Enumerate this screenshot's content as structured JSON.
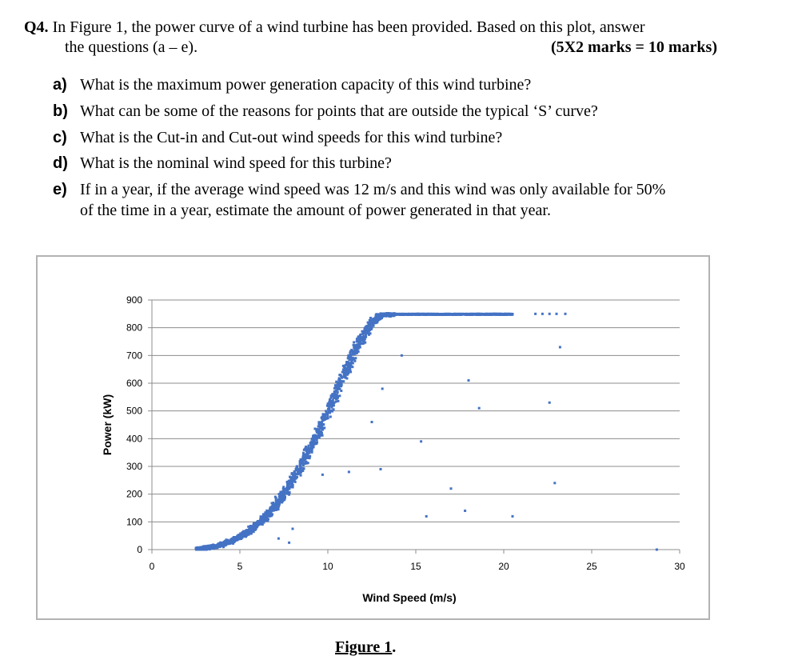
{
  "question": {
    "number": "Q4.",
    "intro_line1": "In Figure 1, the power curve of a wind turbine has been provided. Based on this plot, answer",
    "intro_line2": "the questions (a – e).",
    "marks": "(5X2 marks = 10 marks)"
  },
  "subquestions": [
    {
      "label": "a)",
      "text": "What is the maximum power generation capacity of this wind turbine?"
    },
    {
      "label": "b)",
      "text": "What can be some of the reasons for points that are outside the typical ‘S’ curve?"
    },
    {
      "label": "c)",
      "text": "What is the Cut-in and Cut-out wind speeds for this wind turbine?"
    },
    {
      "label": "d)",
      "text": "What is the nominal wind speed for this turbine?"
    },
    {
      "label": "e)",
      "text": "If in a year, if the average wind speed was 12 m/s and this wind was only available for 50%",
      "text2": "of the time in a year, estimate the amount of power generated in that year."
    }
  ],
  "figure_caption": "Figure 1",
  "figure_caption_suffix": ".",
  "chart_data": {
    "type": "scatter",
    "xlabel": "Wind Speed (m/s)",
    "ylabel": "Power (kW)",
    "xlim": [
      0,
      30
    ],
    "ylim": [
      0,
      900
    ],
    "x_ticks": [
      0,
      5,
      10,
      15,
      20,
      25,
      30
    ],
    "y_ticks": [
      0,
      100,
      200,
      300,
      400,
      500,
      600,
      700,
      800,
      900
    ],
    "grid": "horizontal",
    "legend": "none",
    "marker_color": "#4472c4",
    "power_curve": [
      [
        2.5,
        0
      ],
      [
        3.0,
        5
      ],
      [
        3.5,
        10
      ],
      [
        4.0,
        18
      ],
      [
        4.5,
        30
      ],
      [
        5.0,
        45
      ],
      [
        5.5,
        65
      ],
      [
        6.0,
        90
      ],
      [
        6.5,
        120
      ],
      [
        7.0,
        155
      ],
      [
        7.5,
        200
      ],
      [
        8.0,
        250
      ],
      [
        8.5,
        305
      ],
      [
        9.0,
        365
      ],
      [
        9.5,
        430
      ],
      [
        10.0,
        500
      ],
      [
        10.5,
        570
      ],
      [
        11.0,
        640
      ],
      [
        11.5,
        710
      ],
      [
        12.0,
        770
      ],
      [
        12.5,
        820
      ],
      [
        13.0,
        845
      ],
      [
        14.0,
        850
      ],
      [
        16.0,
        850
      ],
      [
        18.0,
        850
      ],
      [
        20.5,
        850
      ]
    ],
    "outliers": [
      {
        "x": 7.2,
        "y": 40
      },
      {
        "x": 8.0,
        "y": 75
      },
      {
        "x": 7.8,
        "y": 25
      },
      {
        "x": 9.7,
        "y": 270
      },
      {
        "x": 11.2,
        "y": 280
      },
      {
        "x": 12.5,
        "y": 460
      },
      {
        "x": 13.0,
        "y": 290
      },
      {
        "x": 13.1,
        "y": 580
      },
      {
        "x": 14.2,
        "y": 700
      },
      {
        "x": 15.3,
        "y": 390
      },
      {
        "x": 15.6,
        "y": 120
      },
      {
        "x": 17.0,
        "y": 220
      },
      {
        "x": 17.8,
        "y": 140
      },
      {
        "x": 18.0,
        "y": 610
      },
      {
        "x": 18.6,
        "y": 510
      },
      {
        "x": 20.5,
        "y": 120
      },
      {
        "x": 22.6,
        "y": 530
      },
      {
        "x": 22.9,
        "y": 240
      },
      {
        "x": 23.2,
        "y": 730
      },
      {
        "x": 28.7,
        "y": 0
      },
      {
        "x": 21.8,
        "y": 850
      },
      {
        "x": 22.2,
        "y": 850
      },
      {
        "x": 22.6,
        "y": 850
      },
      {
        "x": 23.0,
        "y": 850
      },
      {
        "x": 23.5,
        "y": 850
      }
    ]
  }
}
